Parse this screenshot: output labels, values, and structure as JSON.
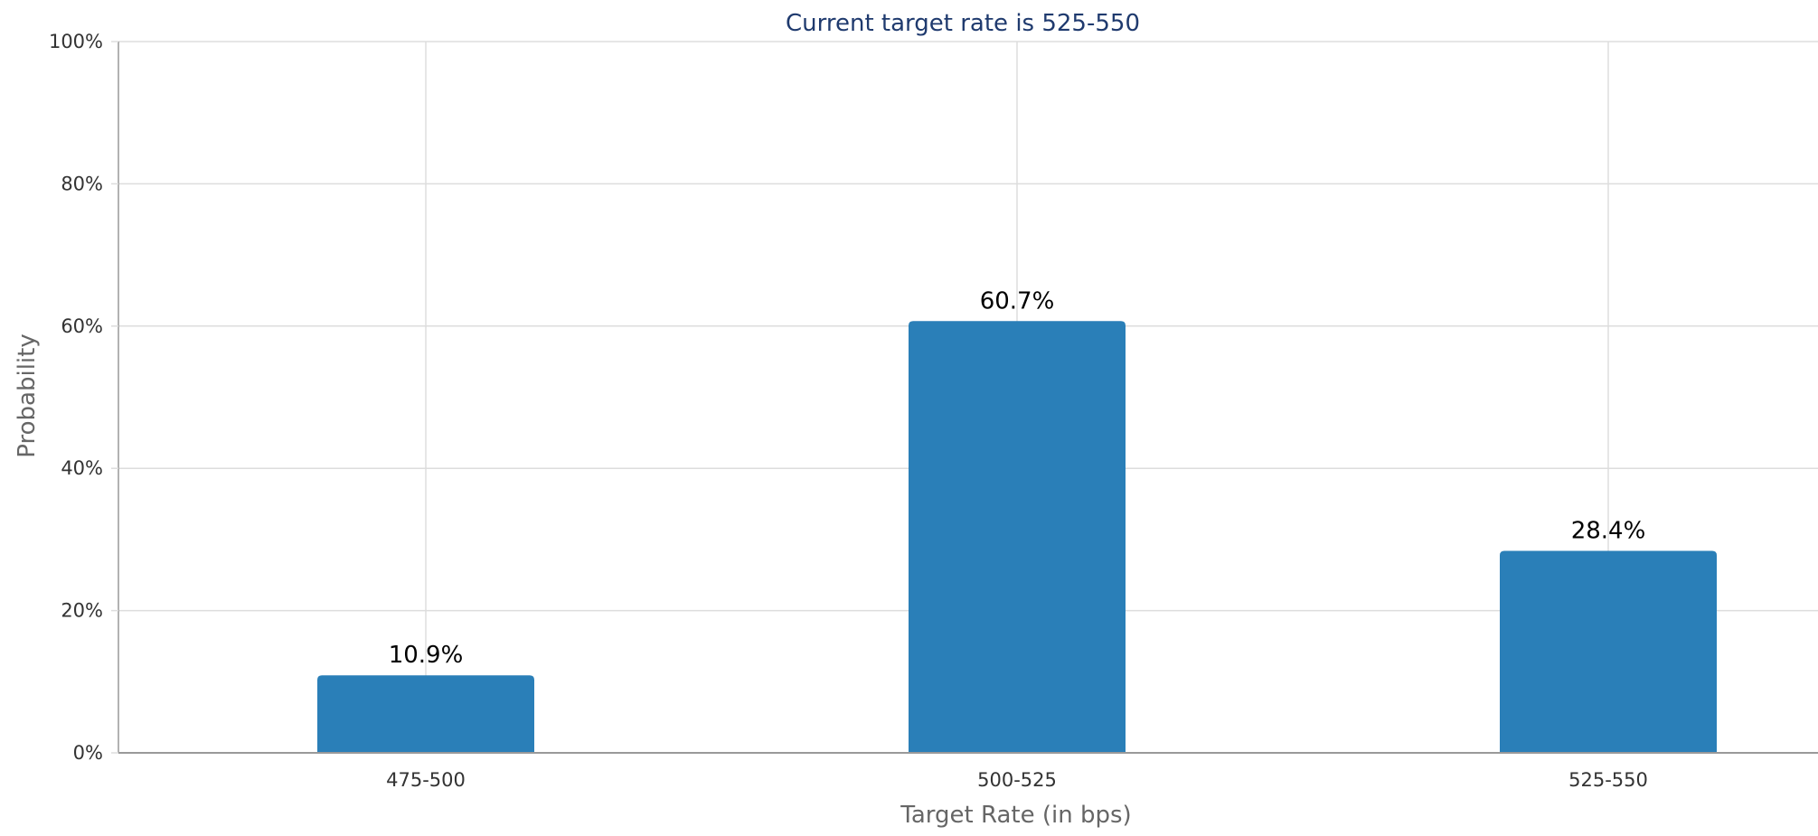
{
  "chart_data": {
    "type": "bar",
    "title": "Current target rate is 525-550",
    "xlabel": "Target Rate (in bps)",
    "ylabel": "Probability",
    "categories": [
      "475-500",
      "500-525",
      "525-550"
    ],
    "series": [
      {
        "values": [
          10.9,
          60.7,
          28.4
        ],
        "data_labels": [
          "10.9%",
          "60.7%",
          "28.4%"
        ],
        "color": "#2a7fb8"
      }
    ],
    "ylim": [
      0,
      100
    ],
    "yticks": [
      0,
      20,
      40,
      60,
      80,
      100
    ],
    "ytick_labels": [
      "0%",
      "20%",
      "40%",
      "60%",
      "80%",
      "100%"
    ],
    "grid": true,
    "legend": "none"
  },
  "colors": {
    "bar": "#2a7fb8",
    "grid": "#dddddd",
    "axis": "#999999",
    "title": "#1f3a6e"
  }
}
